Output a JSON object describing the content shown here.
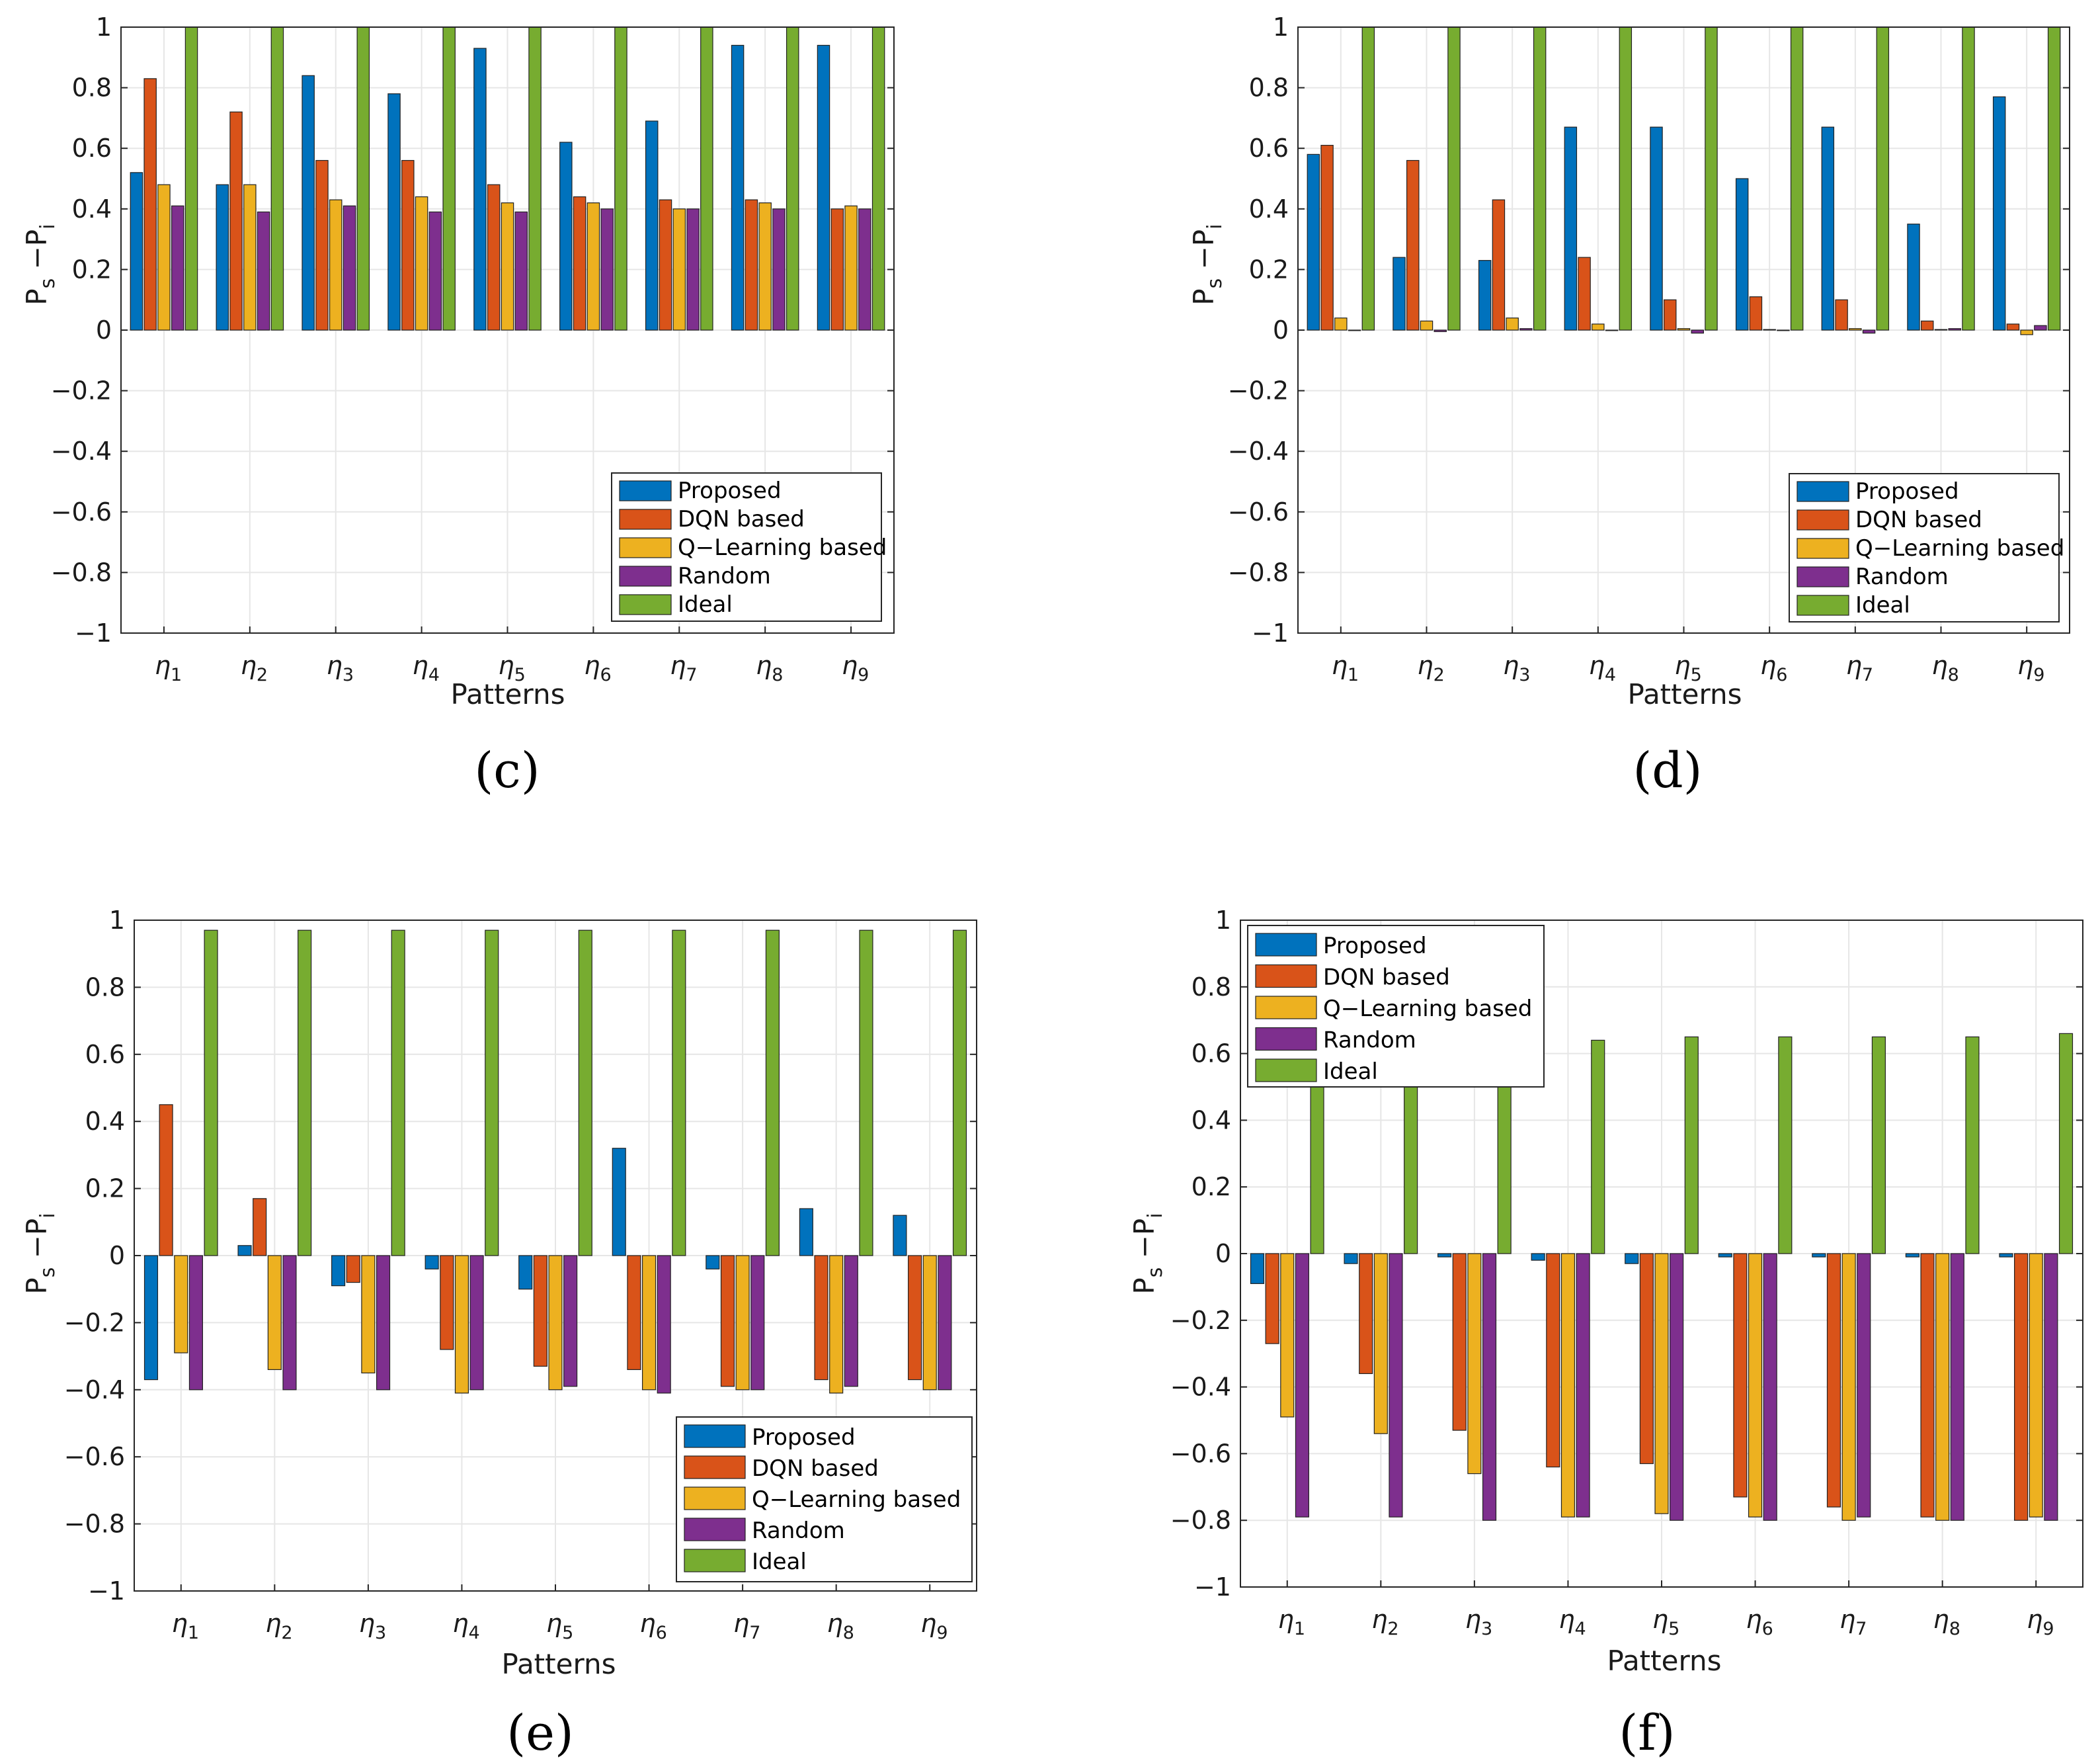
{
  "colors": {
    "proposed": "#0072BD",
    "dqn": "#D95319",
    "qlearning": "#EDB120",
    "random": "#7E2F8E",
    "ideal": "#77AC30",
    "grid": "#e6e6e6",
    "axis": "#262626"
  },
  "chart_data": [
    {
      "type": "bar",
      "panel": "(c)",
      "xlabel": "Patterns",
      "ylabel_main": "P",
      "ylabel_sub1": "s",
      "ylabel_sep": " −P",
      "ylabel_sub2": "i",
      "ylim": [
        -1,
        1
      ],
      "yticks": [
        "−1",
        "−0.8",
        "−0.6",
        "−0.4",
        "−0.2",
        "0",
        "0.2",
        "0.4",
        "0.6",
        "0.8",
        "1"
      ],
      "grid": true,
      "legend_position": "bottom-right",
      "tick_symbol": "η",
      "categories": [
        "1",
        "2",
        "3",
        "4",
        "5",
        "6",
        "7",
        "8",
        "9"
      ],
      "series": [
        {
          "name": "Proposed",
          "values": [
            0.52,
            0.48,
            0.84,
            0.78,
            0.93,
            0.62,
            0.69,
            0.94,
            0.94
          ]
        },
        {
          "name": "DQN based",
          "values": [
            0.83,
            0.72,
            0.56,
            0.56,
            0.48,
            0.44,
            0.43,
            0.43,
            0.4
          ]
        },
        {
          "name": "Q−Learning based",
          "values": [
            0.48,
            0.48,
            0.43,
            0.44,
            0.42,
            0.42,
            0.4,
            0.42,
            0.41
          ]
        },
        {
          "name": "Random",
          "values": [
            0.41,
            0.39,
            0.41,
            0.39,
            0.39,
            0.4,
            0.4,
            0.4,
            0.4
          ]
        },
        {
          "name": "Ideal",
          "values": [
            1.0,
            1.0,
            1.0,
            1.0,
            1.0,
            1.0,
            1.0,
            1.0,
            1.0
          ]
        }
      ]
    },
    {
      "type": "bar",
      "panel": "(d)",
      "xlabel": "Patterns",
      "ylabel_main": "P",
      "ylabel_sub1": "s",
      "ylabel_sep": " −P",
      "ylabel_sub2": "i",
      "ylim": [
        -1,
        1
      ],
      "yticks": [
        "−1",
        "−0.8",
        "−0.6",
        "−0.4",
        "−0.2",
        "0",
        "0.2",
        "0.4",
        "0.6",
        "0.8",
        "1"
      ],
      "grid": true,
      "legend_position": "bottom-right",
      "tick_symbol": "η",
      "categories": [
        "1",
        "2",
        "3",
        "4",
        "5",
        "6",
        "7",
        "8",
        "9"
      ],
      "series": [
        {
          "name": "Proposed",
          "values": [
            0.58,
            0.24,
            0.23,
            0.67,
            0.67,
            0.5,
            0.67,
            0.35,
            0.77
          ]
        },
        {
          "name": "DQN based",
          "values": [
            0.61,
            0.56,
            0.43,
            0.24,
            0.1,
            0.11,
            0.1,
            0.03,
            0.02
          ]
        },
        {
          "name": "Q−Learning based",
          "values": [
            0.04,
            0.03,
            0.04,
            0.02,
            0.005,
            0.002,
            0.005,
            0.002,
            -0.015
          ]
        },
        {
          "name": "Random",
          "values": [
            0.0,
            -0.005,
            0.005,
            0.0,
            -0.01,
            0.0,
            -0.01,
            0.005,
            0.015
          ]
        },
        {
          "name": "Ideal",
          "values": [
            1.0,
            1.0,
            1.0,
            1.0,
            1.0,
            1.0,
            1.0,
            1.0,
            1.0
          ]
        }
      ]
    },
    {
      "type": "bar",
      "panel": "(e)",
      "xlabel": "Patterns",
      "ylabel_main": "P",
      "ylabel_sub1": "s",
      "ylabel_sep": " −P",
      "ylabel_sub2": "i",
      "ylim": [
        -1,
        1
      ],
      "yticks": [
        "−1",
        "−0.8",
        "−0.6",
        "−0.4",
        "−0.2",
        "0",
        "0.2",
        "0.4",
        "0.6",
        "0.8",
        "1"
      ],
      "grid": true,
      "legend_position": "bottom-right",
      "tick_symbol": "η",
      "categories": [
        "1",
        "2",
        "3",
        "4",
        "5",
        "6",
        "7",
        "8",
        "9"
      ],
      "series": [
        {
          "name": "Proposed",
          "values": [
            -0.37,
            0.03,
            -0.09,
            -0.04,
            -0.1,
            0.32,
            -0.04,
            0.14,
            0.12
          ]
        },
        {
          "name": "DQN based",
          "values": [
            0.45,
            0.17,
            -0.08,
            -0.28,
            -0.33,
            -0.34,
            -0.39,
            -0.37,
            -0.37
          ]
        },
        {
          "name": "Q−Learning based",
          "values": [
            -0.29,
            -0.34,
            -0.35,
            -0.41,
            -0.4,
            -0.4,
            -0.4,
            -0.41,
            -0.4
          ]
        },
        {
          "name": "Random",
          "values": [
            -0.4,
            -0.4,
            -0.4,
            -0.4,
            -0.39,
            -0.41,
            -0.4,
            -0.39,
            -0.4
          ]
        },
        {
          "name": "Ideal",
          "values": [
            0.97,
            0.97,
            0.97,
            0.97,
            0.97,
            0.97,
            0.97,
            0.97,
            0.97
          ]
        }
      ]
    },
    {
      "type": "bar",
      "panel": "(f)",
      "xlabel": "Patterns",
      "ylabel_main": "P",
      "ylabel_sub1": "s",
      "ylabel_sep": " −P",
      "ylabel_sub2": "i",
      "ylim": [
        -1,
        1
      ],
      "yticks": [
        "−1",
        "−0.8",
        "−0.6",
        "−0.4",
        "−0.2",
        "0",
        "0.2",
        "0.4",
        "0.6",
        "0.8",
        "1"
      ],
      "grid": true,
      "legend_position": "top-left",
      "tick_symbol": "η",
      "categories": [
        "1",
        "2",
        "3",
        "4",
        "5",
        "6",
        "7",
        "8",
        "9"
      ],
      "series": [
        {
          "name": "Proposed",
          "values": [
            -0.09,
            -0.03,
            -0.01,
            -0.02,
            -0.03,
            -0.01,
            -0.01,
            -0.01,
            -0.01
          ]
        },
        {
          "name": "DQN based",
          "values": [
            -0.27,
            -0.36,
            -0.53,
            -0.64,
            -0.63,
            -0.73,
            -0.76,
            -0.79,
            -0.8
          ]
        },
        {
          "name": "Q−Learning based",
          "values": [
            -0.49,
            -0.54,
            -0.66,
            -0.79,
            -0.78,
            -0.79,
            -0.8,
            -0.8,
            -0.79
          ]
        },
        {
          "name": "Random",
          "values": [
            -0.79,
            -0.79,
            -0.8,
            -0.79,
            -0.8,
            -0.8,
            -0.79,
            -0.8,
            -0.8
          ]
        },
        {
          "name": "Ideal",
          "values": [
            0.64,
            0.64,
            0.64,
            0.64,
            0.65,
            0.65,
            0.65,
            0.65,
            0.66
          ]
        }
      ]
    }
  ]
}
